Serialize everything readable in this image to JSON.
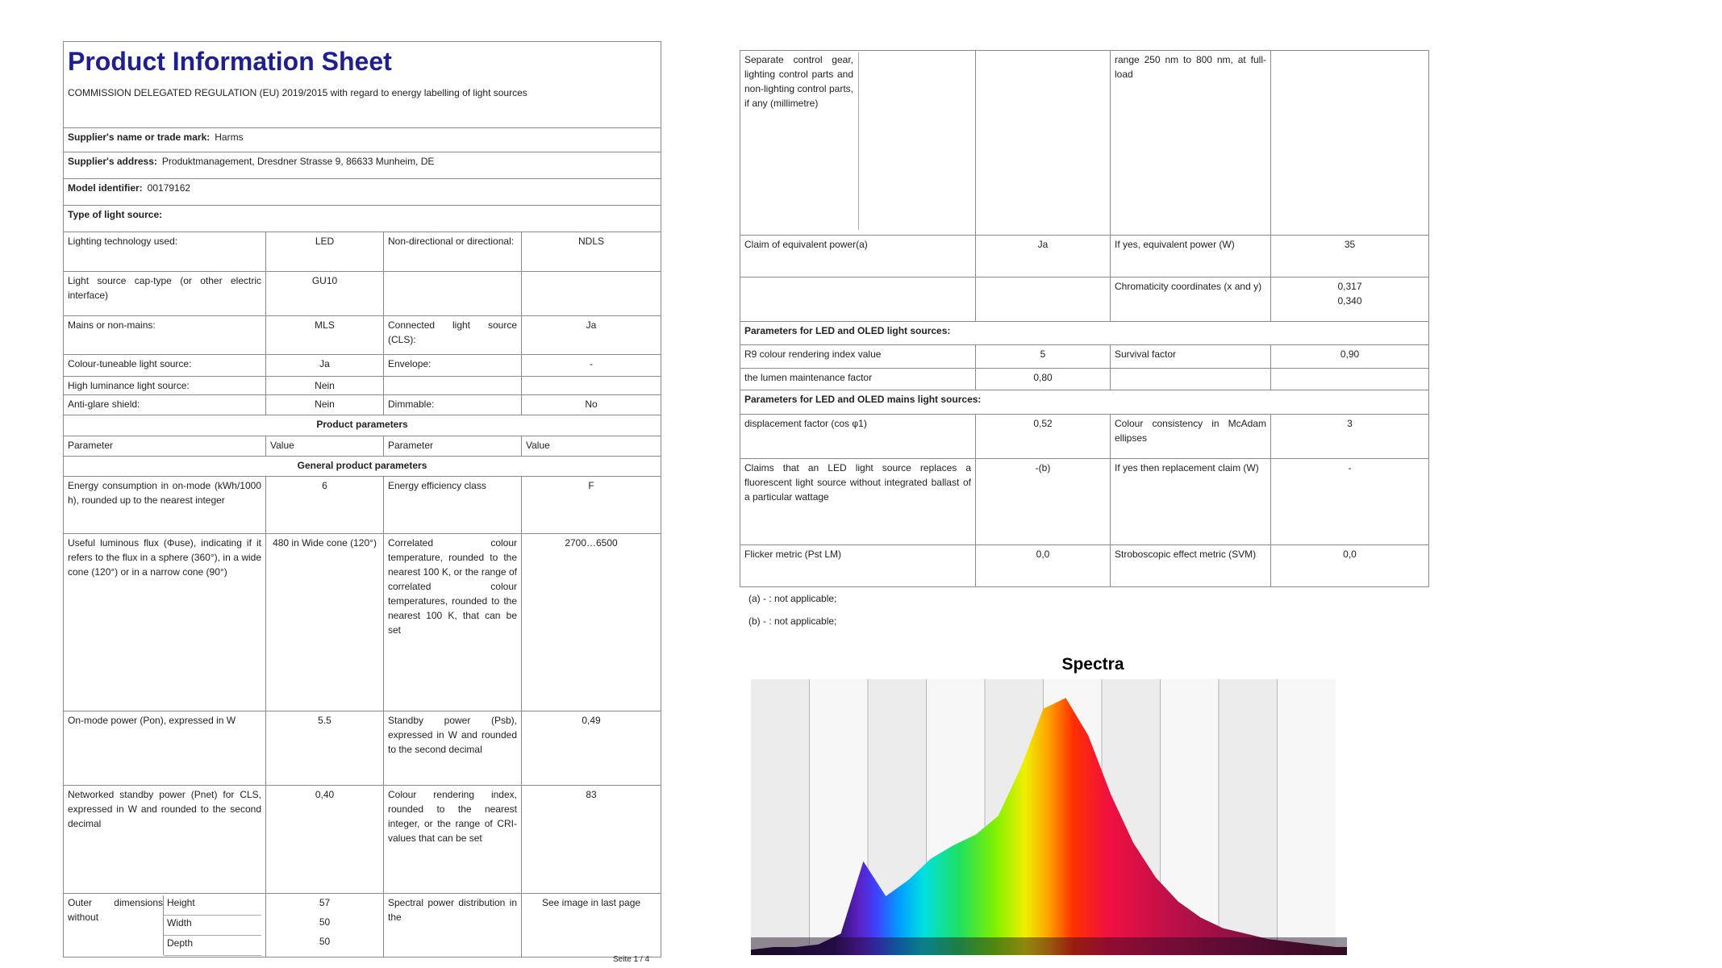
{
  "sheet": {
    "title": "Product Information Sheet",
    "regulation": "COMMISSION DELEGATED REGULATION (EU) 2019/2015 with regard to energy labelling of light sources",
    "supplier_name_label": "Supplier's name or trade mark:",
    "supplier_name": "Harms",
    "supplier_address_label": "Supplier's address:",
    "supplier_address": "Produktmanagement, Dresdner Strasse 9, 86633 Munheim, DE",
    "model_label": "Model identifier:",
    "model": "00179162",
    "type_label": "Type of light source:",
    "type_rows": [
      [
        "Lighting technology used:",
        "LED",
        "Non-directional or directional:",
        "NDLS"
      ],
      [
        "Light source cap-type (or other electric interface)",
        "GU10"
      ],
      [
        "Mains or non-mains:",
        "MLS",
        "Connected light source (CLS):",
        "Ja"
      ],
      [
        "Colour-tuneable light source:",
        "Ja",
        "Envelope:",
        "-"
      ],
      [
        "High luminance light source:",
        "Nein"
      ],
      [
        "Anti-glare shield:",
        "Nein",
        "Dimmable:",
        "No"
      ]
    ],
    "product_parameters": "Product parameters",
    "header": [
      "Parameter",
      "Value",
      "Parameter",
      "Value"
    ],
    "general": "General product parameters",
    "param_rows": [
      [
        "Energy consumption in on-mode (kWh/1000 h), rounded up to the nearest integer",
        "6",
        "Energy efficiency class",
        "F"
      ],
      [
        "Useful luminous flux (Φuse), indicating if it refers to the flux in a sphere (360°), in a wide cone (120°) or in a narrow cone (90°)",
        "480 in Wide cone (120°)",
        "Correlated colour temperature, rounded to the nearest 100 K, or the range of correlated colour temperatures, rounded to the nearest 100 K, that can be set",
        "2700…6500"
      ],
      [
        "On-mode power (Pon), expressed in W",
        "5.5",
        "Standby power (Psb), expressed in W and rounded to the second decimal",
        "0,49"
      ],
      [
        "Networked standby power (Pnet) for CLS, expressed in W and rounded to the second decimal",
        "0,40",
        "Colour rendering index, rounded to the nearest integer, or the range of CRI-values that can be set",
        "83"
      ]
    ],
    "dimensions_label": "Outer dimensions without",
    "dimensions": [
      {
        "name": "Height",
        "value": "57"
      },
      {
        "name": "Width",
        "value": "50"
      },
      {
        "name": "Depth",
        "value": "50"
      }
    ],
    "spd_label": "Spectral power distribution in the",
    "spd_value": "See image in last page",
    "page": "Seite 1 / 4"
  },
  "continuation": {
    "rows": [
      {
        "0": "Separate control gear, lighting control parts and non-lighting control parts, if any (millimetre)",
        "2": "range 250 nm to 800 nm, at full-load"
      },
      {
        "0": "Claim of equivalent power(a)",
        "1": "Ja",
        "2": "If yes, equivalent power (W)",
        "3": "35"
      },
      {
        "2": "Chromaticity coordinates (x and y)",
        "3": [
          "0,317",
          "0,340"
        ]
      },
      {
        "header": "Parameters for LED and OLED light sources:"
      },
      {
        "0": "R9 colour rendering index value",
        "1": "5",
        "2": "Survival factor",
        "3": "0,90"
      },
      {
        "0": "the lumen maintenance factor",
        "1": "0,80"
      },
      {
        "header": "Parameters for LED and OLED mains light sources:"
      },
      {
        "0": "displacement factor (cos φ1)",
        "1": "0,52",
        "2": "Colour consistency in McAdam ellipses",
        "3": "3"
      },
      {
        "0": "Claims that an LED light source replaces a fluorescent light source without integrated ballast of a particular wattage",
        "1": "-(b)",
        "2": "If yes then replacement claim (W)",
        "3": "-"
      },
      {
        "0": "Flicker metric (Pst LM)",
        "1": "0,0",
        "2": "Stroboscopic effect metric (SVM)",
        "3": "0,0"
      }
    ],
    "footnotes": [
      "(a) - : not applicable;",
      "(b) - : not applicable;"
    ]
  },
  "spectrum": {
    "title": "Spectra",
    "values": [
      0.02,
      0.03,
      0.03,
      0.04,
      0.08,
      0.35,
      0.22,
      0.28,
      0.36,
      0.41,
      0.45,
      0.52,
      0.7,
      0.92,
      0.96,
      0.82,
      0.6,
      0.42,
      0.29,
      0.2,
      0.14,
      0.1,
      0.08,
      0.06,
      0.05,
      0.04,
      0.03
    ]
  }
}
